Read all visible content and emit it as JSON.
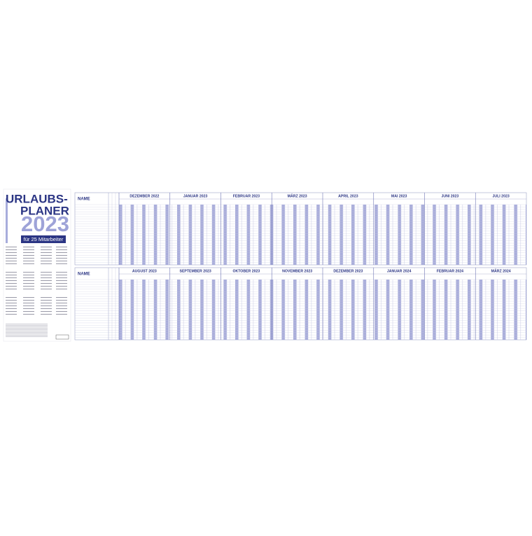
{
  "sidebar": {
    "title_line1": "URLAUBS-",
    "title_line2": "PLANER",
    "year": "2023",
    "subtitle": "für 25 Mitarbeiter"
  },
  "planners": [
    {
      "name_header": "NAME",
      "months": [
        "DEZEMBER 2022",
        "JANUAR 2023",
        "FEBRUAR 2023",
        "MÄRZ 2023",
        "APRIL 2023",
        "MAI 2023",
        "JUNI 2023",
        "JULI 2023"
      ]
    },
    {
      "name_header": "NAME",
      "months": [
        "AUGUST 2023",
        "SEPTEMBER 2023",
        "OKTOBER 2023",
        "NOVEMBER 2023",
        "DEZEMBER 2023",
        "JANUAR 2024",
        "FEBRUAR 2024",
        "MÄRZ 2024"
      ]
    }
  ]
}
